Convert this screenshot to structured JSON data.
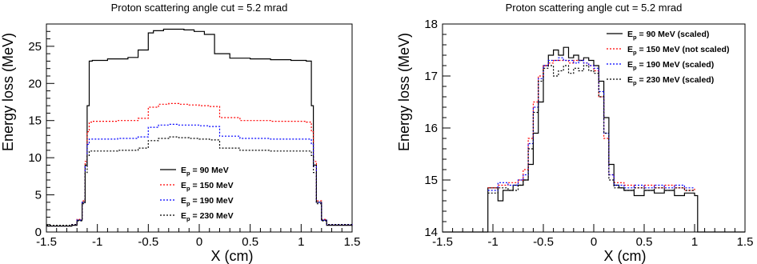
{
  "chart_data": [
    {
      "type": "line",
      "title": "Proton scattering angle cut = 5.2 mrad",
      "xlabel": "X (cm)",
      "ylabel": "Energy loss (MeV)",
      "xlim": [
        -1.5,
        1.5
      ],
      "ylim": [
        0,
        28
      ],
      "xticks": [
        "-1.5",
        "-1",
        "-0.5",
        "0",
        "0.5",
        "1",
        "1.5"
      ],
      "yticks": [
        "0",
        "5",
        "10",
        "15",
        "20",
        "25"
      ],
      "grid": false,
      "legend_placement": "bottom-center",
      "series": [
        {
          "name_prefix": "E",
          "name_sub": "p",
          "name_suffix": " = 90 MeV",
          "color": "#000000",
          "dash": "solid",
          "x": [
            -1.5,
            -1.25,
            -1.2,
            -1.15,
            -1.12,
            -1.1,
            -1.08,
            1.08,
            1.1,
            1.12,
            1.15,
            1.2,
            1.25,
            1.5
          ],
          "y": [
            0.8,
            0.9,
            1.6,
            4.0,
            9.0,
            17.0,
            23.0,
            23.0,
            17.0,
            9.0,
            4.0,
            1.6,
            0.9,
            0.8
          ],
          "x_plateau": [
            -1.05,
            -0.9,
            -0.7,
            -0.6,
            -0.5,
            -0.45,
            -0.35,
            -0.25,
            -0.15,
            -0.05,
            0.05,
            0.15,
            0.3,
            0.5,
            0.7,
            0.9,
            1.05
          ],
          "y_plateau": [
            23.1,
            23.3,
            23.5,
            24.5,
            26.8,
            27.1,
            27.3,
            27.3,
            27.2,
            27.0,
            26.6,
            24.0,
            23.4,
            23.3,
            23.2,
            23.1,
            23.0
          ]
        },
        {
          "name_prefix": "E",
          "name_sub": "p",
          "name_suffix": " = 150 MeV",
          "color": "#ff0000",
          "dash": "dotted",
          "x": [
            -1.5,
            -1.25,
            -1.2,
            -1.15,
            -1.12,
            -1.1,
            -1.08,
            1.08,
            1.1,
            1.12,
            1.15,
            1.2,
            1.25,
            1.5
          ],
          "y": [
            0.9,
            1.0,
            1.7,
            4.2,
            9.5,
            13.5,
            14.8,
            14.8,
            13.5,
            9.5,
            4.2,
            1.7,
            1.0,
            0.9
          ],
          "x_plateau": [
            -1.05,
            -0.8,
            -0.6,
            -0.5,
            -0.4,
            -0.3,
            -0.2,
            -0.1,
            0.0,
            0.1,
            0.2,
            0.4,
            0.7,
            1.05
          ],
          "y_plateau": [
            14.9,
            15.0,
            15.3,
            16.8,
            17.2,
            17.3,
            17.2,
            17.1,
            17.0,
            16.9,
            15.4,
            15.0,
            14.9,
            14.8
          ]
        },
        {
          "name_prefix": "E",
          "name_sub": "p",
          "name_suffix": " = 190 MeV",
          "color": "#0000ff",
          "dash": "dotted",
          "x": [
            -1.5,
            -1.25,
            -1.2,
            -1.15,
            -1.12,
            -1.1,
            -1.08,
            1.08,
            1.1,
            1.12,
            1.15,
            1.2,
            1.25,
            1.5
          ],
          "y": [
            0.9,
            1.0,
            1.6,
            4.0,
            8.8,
            11.8,
            12.5,
            12.5,
            11.8,
            8.8,
            4.0,
            1.6,
            1.0,
            0.9
          ],
          "x_plateau": [
            -1.05,
            -0.8,
            -0.6,
            -0.5,
            -0.4,
            -0.3,
            -0.2,
            -0.1,
            0.0,
            0.1,
            0.2,
            0.4,
            0.7,
            1.05
          ],
          "y_plateau": [
            12.5,
            12.6,
            12.8,
            14.1,
            14.4,
            14.5,
            14.4,
            14.4,
            14.3,
            14.2,
            12.9,
            12.6,
            12.5,
            12.5
          ]
        },
        {
          "name_prefix": "E",
          "name_sub": "p",
          "name_suffix": " = 230 MeV",
          "color": "#000000",
          "dash": "dotted",
          "x": [
            -1.5,
            -1.25,
            -1.2,
            -1.15,
            -1.12,
            -1.1,
            -1.08,
            1.08,
            1.1,
            1.12,
            1.15,
            1.2,
            1.25,
            1.5
          ],
          "y": [
            0.9,
            1.0,
            1.5,
            3.8,
            8.0,
            10.3,
            10.9,
            10.9,
            10.3,
            8.0,
            3.8,
            1.5,
            1.0,
            0.9
          ],
          "x_plateau": [
            -1.05,
            -0.8,
            -0.6,
            -0.5,
            -0.4,
            -0.3,
            -0.2,
            -0.1,
            0.0,
            0.1,
            0.2,
            0.4,
            0.7,
            1.05
          ],
          "y_plateau": [
            10.9,
            11.0,
            11.3,
            12.3,
            12.6,
            12.8,
            12.7,
            12.6,
            12.5,
            12.4,
            11.3,
            11.0,
            10.9,
            10.9
          ]
        }
      ]
    },
    {
      "type": "line",
      "title": "Proton scattering angle cut = 5.2 mrad",
      "xlabel": "X (cm)",
      "ylabel": "Energy loss (MeV)",
      "xlim": [
        -1.5,
        1.5
      ],
      "ylim": [
        14,
        18
      ],
      "xticks": [
        "-1.5",
        "-1",
        "-0.5",
        "0",
        "0.5",
        "1",
        "1.5"
      ],
      "yticks": [
        "14",
        "15",
        "16",
        "17",
        "18"
      ],
      "grid": false,
      "legend_placement": "top-right",
      "series": [
        {
          "name_prefix": "E",
          "name_sub": "p",
          "name_suffix": " = 90 MeV (scaled)",
          "color": "#000000",
          "dash": "solid",
          "x": [
            -1.5,
            -1.05,
            -1.05,
            -0.95,
            -0.9,
            -0.8,
            -0.7,
            -0.65,
            -0.6,
            -0.55,
            -0.5,
            -0.45,
            -0.4,
            -0.35,
            -0.3,
            -0.25,
            -0.2,
            -0.15,
            -0.1,
            -0.05,
            0.0,
            0.05,
            0.1,
            0.15,
            0.2,
            0.25,
            0.3,
            0.4,
            0.5,
            0.6,
            0.7,
            0.8,
            0.9,
            1.0,
            1.03,
            1.03,
            1.5
          ],
          "y": [
            14.0,
            14.0,
            14.85,
            14.6,
            14.8,
            14.9,
            15.0,
            15.3,
            15.9,
            16.5,
            17.2,
            17.4,
            17.5,
            17.4,
            17.55,
            17.35,
            17.4,
            17.3,
            17.35,
            17.3,
            17.2,
            16.9,
            16.2,
            15.3,
            14.9,
            14.85,
            14.8,
            14.7,
            14.8,
            14.75,
            14.8,
            14.7,
            14.75,
            14.7,
            14.7,
            14.0,
            14.0
          ]
        },
        {
          "name_prefix": "E",
          "name_sub": "p",
          "name_suffix": " = 150 MeV (not scaled)",
          "color": "#ff0000",
          "dash": "dotted",
          "x": [
            -1.05,
            -0.95,
            -0.85,
            -0.75,
            -0.7,
            -0.65,
            -0.6,
            -0.55,
            -0.5,
            -0.45,
            -0.4,
            -0.35,
            -0.3,
            -0.25,
            -0.2,
            -0.15,
            -0.1,
            -0.05,
            0.0,
            0.05,
            0.1,
            0.15,
            0.2,
            0.3,
            0.4,
            0.5,
            0.6,
            0.7,
            0.8,
            0.9,
            1.0
          ],
          "y": [
            14.85,
            14.9,
            14.95,
            15.0,
            15.2,
            15.8,
            16.5,
            17.0,
            17.2,
            17.25,
            17.3,
            17.3,
            17.3,
            17.25,
            17.3,
            17.3,
            17.25,
            17.2,
            17.1,
            16.6,
            15.8,
            15.1,
            14.95,
            14.9,
            14.85,
            14.9,
            14.85,
            14.9,
            14.85,
            14.8,
            14.85
          ]
        },
        {
          "name_prefix": "E",
          "name_sub": "p",
          "name_suffix": " = 190 MeV (scaled)",
          "color": "#0000ff",
          "dash": "dotted",
          "x": [
            -1.05,
            -0.95,
            -0.85,
            -0.75,
            -0.7,
            -0.65,
            -0.6,
            -0.55,
            -0.5,
            -0.45,
            -0.4,
            -0.35,
            -0.3,
            -0.25,
            -0.2,
            -0.15,
            -0.1,
            -0.05,
            0.0,
            0.05,
            0.1,
            0.15,
            0.2,
            0.3,
            0.4,
            0.5,
            0.6,
            0.7,
            0.8,
            0.9,
            1.0
          ],
          "y": [
            14.8,
            14.95,
            14.9,
            15.0,
            15.1,
            15.7,
            16.4,
            16.95,
            17.2,
            17.3,
            17.3,
            17.35,
            17.3,
            17.3,
            17.25,
            17.3,
            17.25,
            17.2,
            17.15,
            16.7,
            15.9,
            15.1,
            14.9,
            14.85,
            14.9,
            14.85,
            14.9,
            14.85,
            14.9,
            14.85,
            14.85
          ]
        },
        {
          "name_prefix": "E",
          "name_sub": "p",
          "name_suffix": " = 230 MeV (scaled)",
          "color": "#000000",
          "dash": "dotted",
          "x": [
            -1.05,
            -0.95,
            -0.85,
            -0.75,
            -0.7,
            -0.65,
            -0.6,
            -0.55,
            -0.5,
            -0.45,
            -0.4,
            -0.35,
            -0.3,
            -0.25,
            -0.2,
            -0.15,
            -0.1,
            -0.05,
            0.0,
            0.05,
            0.1,
            0.15,
            0.2,
            0.3,
            0.4,
            0.5,
            0.6,
            0.7,
            0.8,
            0.9,
            1.0
          ],
          "y": [
            14.75,
            14.85,
            14.8,
            14.9,
            15.0,
            15.6,
            16.3,
            16.9,
            17.15,
            17.2,
            17.0,
            17.1,
            17.2,
            17.05,
            17.15,
            17.1,
            17.2,
            17.1,
            17.05,
            16.6,
            15.9,
            15.0,
            14.85,
            14.8,
            14.85,
            14.8,
            14.85,
            14.8,
            14.85,
            14.8,
            14.8
          ]
        }
      ]
    }
  ]
}
